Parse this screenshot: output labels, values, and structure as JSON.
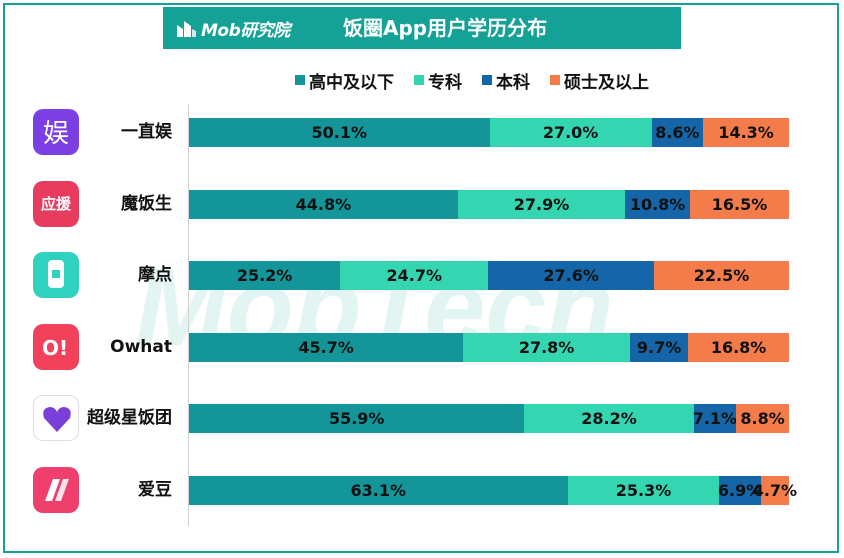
{
  "header": {
    "brand": "Mob研究院",
    "title": "饭圈App用户学历分布"
  },
  "watermark": "MobTech",
  "colors": {
    "frame": "#14a196",
    "series": [
      "#13959a",
      "#34d6b1",
      "#1466a8",
      "#f47c4a"
    ]
  },
  "icons": [
    {
      "app": "一直娱",
      "name": "yizhiyu-app-icon",
      "bg": "#7b3fe4",
      "glyph": "娱"
    },
    {
      "app": "魔饭生",
      "name": "mofansheng-app-icon",
      "bg": "#e83c5e",
      "glyph": "应援"
    },
    {
      "app": "摩点",
      "name": "modian-app-icon",
      "bg": "#2fd1bf",
      "glyph": ""
    },
    {
      "app": "Owhat",
      "name": "owhat-app-icon",
      "bg": "#f2415a",
      "glyph": "O!"
    },
    {
      "app": "超级星饭团",
      "name": "chaojixingfantuan-app-icon",
      "bg": "#ffffff",
      "glyph": ""
    },
    {
      "app": "爱豆",
      "name": "aidou-app-icon",
      "bg": "#ee3f6d",
      "glyph": ""
    }
  ],
  "chart_data": {
    "type": "bar",
    "orientation": "horizontal",
    "stacked": true,
    "normalized_to": 100,
    "title": "饭圈App用户学历分布",
    "legend_position": "top",
    "categories": [
      "一直娱",
      "魔饭生",
      "摩点",
      "Owhat",
      "超级星饭团",
      "爱豆"
    ],
    "series": [
      {
        "name": "高中及以下",
        "values": [
          50.1,
          44.8,
          25.2,
          45.7,
          55.9,
          63.1
        ],
        "labels": [
          "50.1%",
          "44.8%",
          "25.2%",
          "45.7%",
          "55.9%",
          "63.1%"
        ]
      },
      {
        "name": "专科",
        "values": [
          27.0,
          27.9,
          24.7,
          27.8,
          28.2,
          25.3
        ],
        "labels": [
          "27.0%",
          "27.9%",
          "24.7%",
          "27.8%",
          "28.2%",
          "25.3%"
        ]
      },
      {
        "name": "本科",
        "values": [
          8.6,
          10.8,
          27.6,
          9.7,
          7.1,
          6.9
        ],
        "labels": [
          "8.6%",
          "10.8%",
          "27.6%",
          "9.7%",
          "7.1%",
          "6.9%"
        ]
      },
      {
        "name": "硕士及以上",
        "values": [
          14.3,
          16.5,
          22.5,
          16.8,
          8.8,
          4.7
        ],
        "labels": [
          "14.3%",
          "16.5%",
          "22.5%",
          "16.8%",
          "8.8%",
          "4.7%"
        ]
      }
    ]
  }
}
